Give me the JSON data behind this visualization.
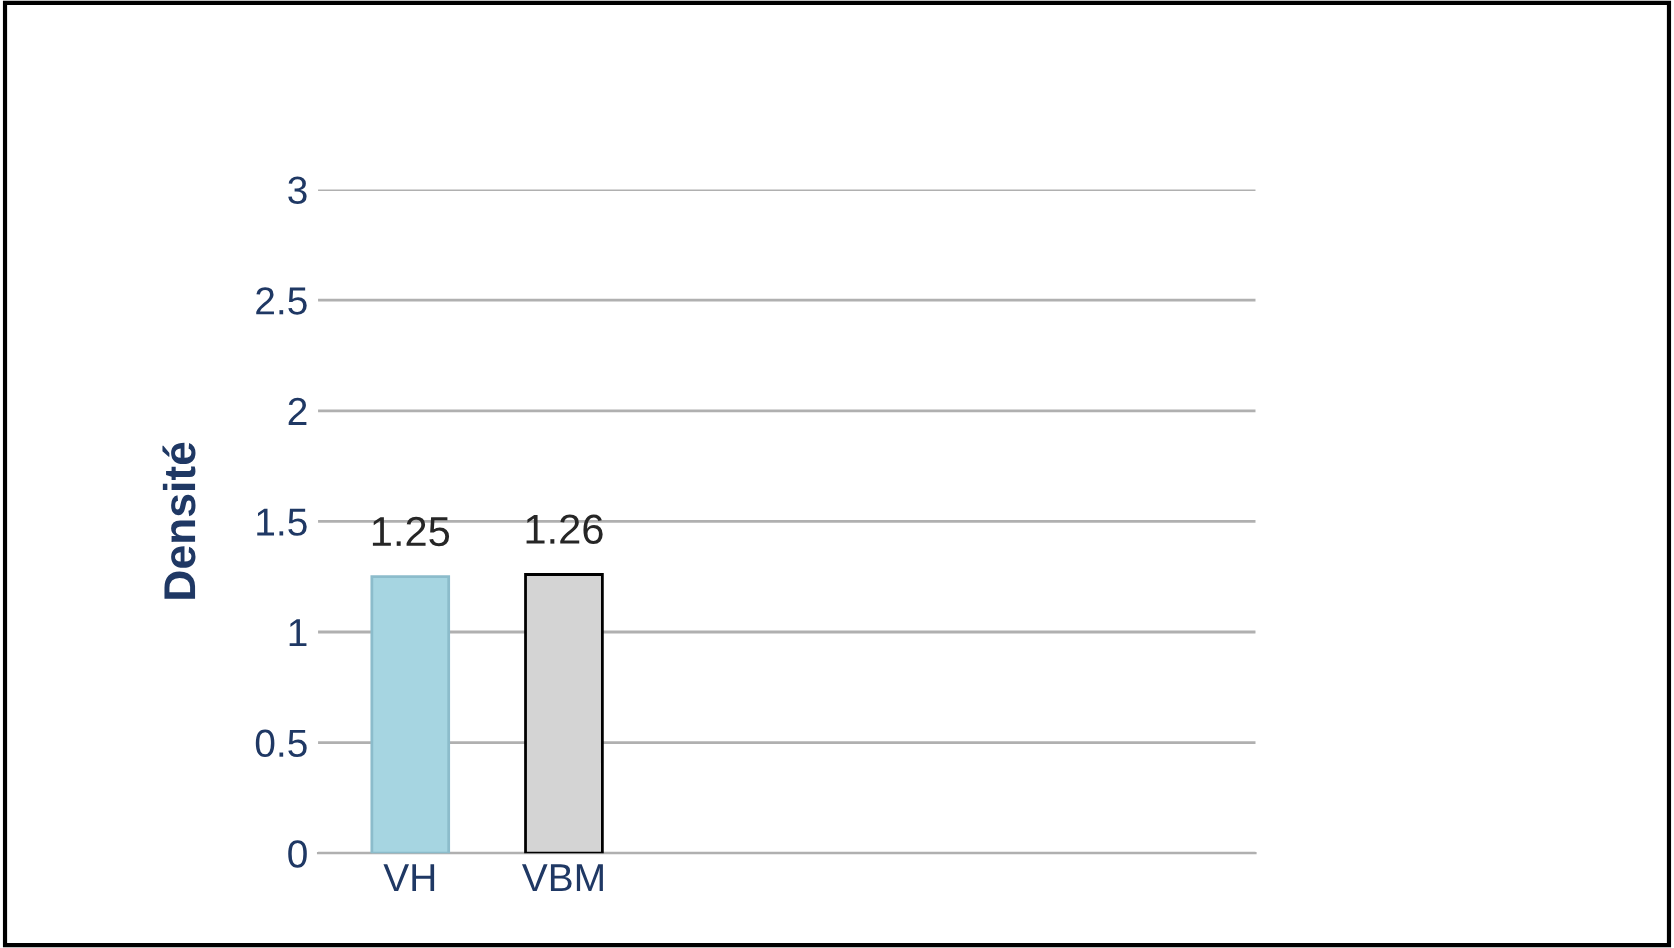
{
  "chart_data": {
    "type": "bar",
    "ylabel": "Densité",
    "categories": [
      "VH",
      "VBM"
    ],
    "values": [
      1.25,
      1.26
    ],
    "colors": [
      "#a6d5e1",
      "#d4d4d4"
    ],
    "ylim": [
      0,
      3
    ],
    "yticks": [
      0,
      0.5,
      1,
      1.5,
      2,
      2.5,
      3
    ],
    "grid": "y",
    "data_labels": true
  }
}
